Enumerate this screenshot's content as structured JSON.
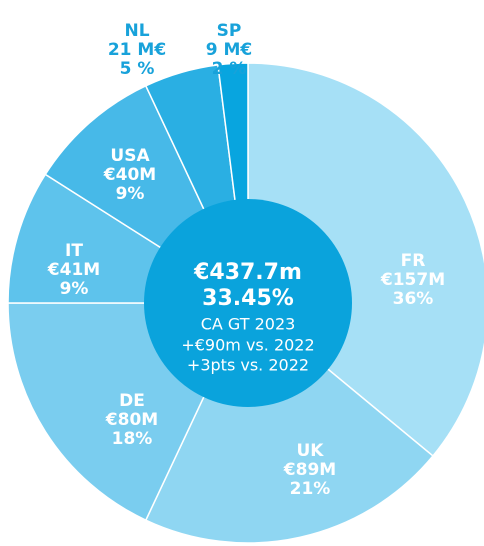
{
  "chart_data": {
    "type": "donut",
    "categories": [
      "FR",
      "UK",
      "DE",
      "IT",
      "USA",
      "NL",
      "SP"
    ],
    "values": [
      36,
      21,
      18,
      9,
      9,
      5,
      2
    ],
    "value_labels": [
      "36%",
      "21%",
      "18%",
      "9%",
      "9%",
      "5 %",
      "2 %"
    ],
    "amount_labels": [
      "€157M",
      "€89M",
      "€80M",
      "€41M",
      "€40M",
      "21 M€",
      "9 M€"
    ],
    "colors": [
      "#a6e0f6",
      "#8fd6f2",
      "#7acdef",
      "#5ec3ec",
      "#47b9e8",
      "#2aafe3",
      "#08a5df"
    ],
    "center": {
      "total": "€437.7m",
      "share": "33.45%",
      "caption": "CA GT 2023",
      "delta_amount": "+€90m vs. 2022",
      "delta_pts": "+3pts vs. 2022"
    }
  }
}
